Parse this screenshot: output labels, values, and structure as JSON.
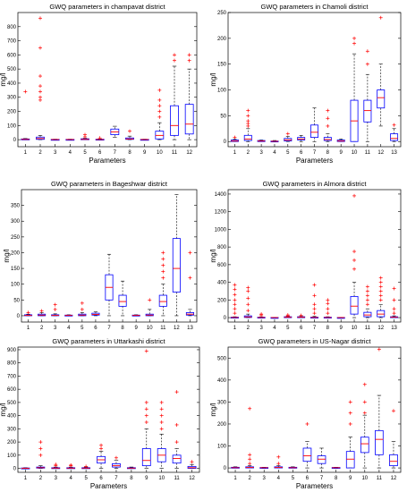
{
  "chart_data": [
    {
      "type": "box",
      "title": "GWQ parameters in champavat district",
      "xlabel": "Parameters",
      "ylabel": "mg/l",
      "categories": [
        "1",
        "2",
        "3",
        "4",
        "5",
        "6",
        "7",
        "8",
        "9",
        "10",
        "11",
        "12"
      ],
      "ylim": [
        -50,
        900
      ],
      "yticks": [
        0,
        100,
        200,
        300,
        400,
        500,
        600,
        700,
        800
      ],
      "boxes": [
        {
          "q1": 0,
          "med": 2,
          "q3": 5,
          "lw": 0,
          "uw": 8,
          "out": [
            340
          ]
        },
        {
          "q1": 2,
          "med": 8,
          "q3": 18,
          "lw": 0,
          "uw": 30,
          "out": [
            280,
            300,
            340,
            380,
            450,
            650,
            860
          ]
        },
        {
          "q1": 0,
          "med": 1,
          "q3": 2,
          "lw": 0,
          "uw": 3,
          "out": []
        },
        {
          "q1": 0,
          "med": 1,
          "q3": 2,
          "lw": 0,
          "uw": 3,
          "out": []
        },
        {
          "q1": 0,
          "med": 2,
          "q3": 6,
          "lw": 0,
          "uw": 10,
          "out": [
            20,
            35
          ]
        },
        {
          "q1": 0,
          "med": 1,
          "q3": 3,
          "lw": 0,
          "uw": 5,
          "out": [
            12
          ]
        },
        {
          "q1": 35,
          "med": 55,
          "q3": 75,
          "lw": 15,
          "uw": 95,
          "out": []
        },
        {
          "q1": 2,
          "med": 5,
          "q3": 12,
          "lw": 0,
          "uw": 25,
          "out": [
            60
          ]
        },
        {
          "q1": 0,
          "med": 1,
          "q3": 2,
          "lw": 0,
          "uw": 3,
          "out": []
        },
        {
          "q1": 5,
          "med": 30,
          "q3": 60,
          "lw": 0,
          "uw": 120,
          "out": [
            160,
            200,
            240,
            280,
            350
          ]
        },
        {
          "q1": 30,
          "med": 100,
          "q3": 240,
          "lw": 0,
          "uw": 520,
          "out": [
            560,
            600
          ]
        },
        {
          "q1": 40,
          "med": 110,
          "q3": 250,
          "lw": 0,
          "uw": 500,
          "out": [
            560,
            600
          ]
        }
      ]
    },
    {
      "type": "box",
      "title": "GWQ parameters in Chamoli district",
      "xlabel": "Parameters",
      "ylabel": "mg/l",
      "categories": [
        "1",
        "2",
        "3",
        "4",
        "5",
        "6",
        "7",
        "8",
        "9",
        "10",
        "11",
        "12",
        "13"
      ],
      "ylim": [
        -10,
        250
      ],
      "yticks": [
        0,
        50,
        100,
        150,
        200,
        250
      ],
      "boxes": [
        {
          "q1": 0,
          "med": 1,
          "q3": 3,
          "lw": 0,
          "uw": 5,
          "out": [
            8
          ]
        },
        {
          "q1": 2,
          "med": 5,
          "q3": 12,
          "lw": 0,
          "uw": 25,
          "out": [
            30,
            35,
            40,
            50,
            60
          ]
        },
        {
          "q1": 0,
          "med": 1,
          "q3": 2,
          "lw": 0,
          "uw": 3,
          "out": []
        },
        {
          "q1": 0,
          "med": 0.5,
          "q3": 1,
          "lw": 0,
          "uw": 2,
          "out": []
        },
        {
          "q1": 1,
          "med": 3,
          "q3": 6,
          "lw": 0,
          "uw": 10,
          "out": [
            15
          ]
        },
        {
          "q1": 3,
          "med": 5,
          "q3": 8,
          "lw": 0,
          "uw": 12,
          "out": []
        },
        {
          "q1": 8,
          "med": 18,
          "q3": 32,
          "lw": 0,
          "uw": 65,
          "out": []
        },
        {
          "q1": 2,
          "med": 4,
          "q3": 8,
          "lw": 0,
          "uw": 15,
          "out": [
            30,
            45,
            60
          ]
        },
        {
          "q1": 0,
          "med": 1,
          "q3": 3,
          "lw": 0,
          "uw": 5,
          "out": []
        },
        {
          "q1": 0,
          "med": 40,
          "q3": 80,
          "lw": 0,
          "uw": 170,
          "out": [
            190,
            200
          ]
        },
        {
          "q1": 38,
          "med": 60,
          "q3": 80,
          "lw": 0,
          "uw": 130,
          "out": [
            150,
            175
          ]
        },
        {
          "q1": 65,
          "med": 85,
          "q3": 100,
          "lw": 30,
          "uw": 150,
          "out": [
            240
          ]
        },
        {
          "q1": 2,
          "med": 6,
          "q3": 15,
          "lw": 0,
          "uw": 25,
          "out": [
            32
          ]
        }
      ]
    },
    {
      "type": "box",
      "title": "GWQ parameters in Bageshwar district",
      "xlabel": "",
      "ylabel": "mg/l",
      "categories": [
        "1",
        "2",
        "3",
        "4",
        "5",
        "6",
        "7",
        "8",
        "9",
        "10",
        "11",
        "12",
        "13"
      ],
      "ylim": [
        -20,
        400
      ],
      "yticks": [
        0,
        50,
        100,
        150,
        200,
        250,
        300,
        350
      ],
      "boxes": [
        {
          "q1": 0,
          "med": 1,
          "q3": 3,
          "lw": 0,
          "uw": 5,
          "out": [
            10
          ]
        },
        {
          "q1": 0,
          "med": 2,
          "q3": 5,
          "lw": 0,
          "uw": 10,
          "out": [
            15
          ]
        },
        {
          "q1": 0,
          "med": 1,
          "q3": 3,
          "lw": 0,
          "uw": 6,
          "out": [
            20,
            35
          ]
        },
        {
          "q1": 0,
          "med": 1,
          "q3": 2,
          "lw": 0,
          "uw": 3,
          "out": []
        },
        {
          "q1": 0,
          "med": 2,
          "q3": 5,
          "lw": 0,
          "uw": 10,
          "out": [
            20,
            40
          ]
        },
        {
          "q1": 2,
          "med": 4,
          "q3": 8,
          "lw": 0,
          "uw": 12,
          "out": []
        },
        {
          "q1": 50,
          "med": 90,
          "q3": 130,
          "lw": 0,
          "uw": 195,
          "out": []
        },
        {
          "q1": 30,
          "med": 45,
          "q3": 65,
          "lw": 0,
          "uw": 110,
          "out": []
        },
        {
          "q1": 0,
          "med": 1,
          "q3": 2,
          "lw": 0,
          "uw": 3,
          "out": []
        },
        {
          "q1": 0,
          "med": 2,
          "q3": 5,
          "lw": 0,
          "uw": 20,
          "out": [
            50
          ]
        },
        {
          "q1": 30,
          "med": 45,
          "q3": 65,
          "lw": 0,
          "uw": 100,
          "out": [
            120,
            140,
            160,
            180,
            200
          ]
        },
        {
          "q1": 75,
          "med": 150,
          "q3": 245,
          "lw": 0,
          "uw": 385,
          "out": []
        },
        {
          "q1": 2,
          "med": 5,
          "q3": 10,
          "lw": 0,
          "uw": 20,
          "out": [
            120,
            200
          ]
        }
      ]
    },
    {
      "type": "box",
      "title": "GWQ parameters in Almora district",
      "xlabel": "",
      "ylabel": "mg/l",
      "categories": [
        "1",
        "2",
        "3",
        "4",
        "5",
        "6",
        "7",
        "8",
        "9",
        "10",
        "11",
        "12",
        "13"
      ],
      "ylim": [
        -50,
        1450
      ],
      "yticks": [
        0,
        200,
        400,
        600,
        800,
        1000,
        1200,
        1400
      ],
      "boxes": [
        {
          "q1": 0,
          "med": 2,
          "q3": 5,
          "lw": 0,
          "uw": 10,
          "out": [
            50,
            100,
            150,
            200,
            260,
            320,
            370
          ]
        },
        {
          "q1": 2,
          "med": 8,
          "q3": 20,
          "lw": 0,
          "uw": 40,
          "out": [
            80,
            150,
            220,
            300,
            340
          ]
        },
        {
          "q1": 0,
          "med": 2,
          "q3": 5,
          "lw": 0,
          "uw": 10,
          "out": [
            30,
            40
          ]
        },
        {
          "q1": 0,
          "med": 1,
          "q3": 2,
          "lw": 0,
          "uw": 3,
          "out": []
        },
        {
          "q1": 2,
          "med": 5,
          "q3": 10,
          "lw": 0,
          "uw": 15,
          "out": [
            20,
            30
          ]
        },
        {
          "q1": 2,
          "med": 5,
          "q3": 10,
          "lw": 0,
          "uw": 15,
          "out": [
            25
          ]
        },
        {
          "q1": 0,
          "med": 2,
          "q3": 5,
          "lw": 0,
          "uw": 15,
          "out": [
            50,
            100,
            150,
            250,
            370
          ]
        },
        {
          "q1": 0,
          "med": 2,
          "q3": 5,
          "lw": 0,
          "uw": 10,
          "out": [
            50,
            100,
            160,
            200
          ]
        },
        {
          "q1": 0,
          "med": 1,
          "q3": 2,
          "lw": 0,
          "uw": 3,
          "out": []
        },
        {
          "q1": 40,
          "med": 130,
          "q3": 240,
          "lw": 0,
          "uw": 400,
          "out": [
            550,
            650,
            750,
            1380
          ]
        },
        {
          "q1": 10,
          "med": 30,
          "q3": 60,
          "lw": 0,
          "uw": 100,
          "out": [
            150,
            200,
            250,
            300,
            350
          ]
        },
        {
          "q1": 10,
          "med": 40,
          "q3": 80,
          "lw": 0,
          "uw": 150,
          "out": [
            200,
            250,
            300,
            350,
            400,
            450
          ]
        },
        {
          "q1": 2,
          "med": 5,
          "q3": 10,
          "lw": 0,
          "uw": 20,
          "out": [
            50,
            100,
            200,
            330
          ]
        }
      ]
    },
    {
      "type": "box",
      "title": "GWQ parameters in Uttarkashi district",
      "xlabel": "Parameters",
      "ylabel": "mg/l",
      "categories": [
        "1",
        "2",
        "3",
        "4",
        "5",
        "6",
        "7",
        "8",
        "9",
        "10",
        "11",
        "12"
      ],
      "ylim": [
        -30,
        920
      ],
      "yticks": [
        0,
        100,
        200,
        300,
        400,
        500,
        600,
        700,
        800,
        900
      ],
      "boxes": [
        {
          "q1": 0,
          "med": 1,
          "q3": 3,
          "lw": 0,
          "uw": 5,
          "out": []
        },
        {
          "q1": 2,
          "med": 5,
          "q3": 10,
          "lw": 0,
          "uw": 20,
          "out": [
            100,
            150,
            200
          ]
        },
        {
          "q1": 0,
          "med": 2,
          "q3": 5,
          "lw": 0,
          "uw": 10,
          "out": [
            20,
            30
          ]
        },
        {
          "q1": 0,
          "med": 2,
          "q3": 5,
          "lw": 0,
          "uw": 10,
          "out": [
            20,
            25
          ]
        },
        {
          "q1": 0,
          "med": 2,
          "q3": 5,
          "lw": 0,
          "uw": 10,
          "out": [
            15
          ]
        },
        {
          "q1": 40,
          "med": 65,
          "q3": 90,
          "lw": 0,
          "uw": 130,
          "out": [
            150,
            175
          ]
        },
        {
          "q1": 10,
          "med": 20,
          "q3": 35,
          "lw": 0,
          "uw": 60,
          "out": [
            80
          ]
        },
        {
          "q1": 0,
          "med": 2,
          "q3": 5,
          "lw": 0,
          "uw": 10,
          "out": []
        },
        {
          "q1": 20,
          "med": 60,
          "q3": 150,
          "lw": 0,
          "uw": 300,
          "out": [
            350,
            400,
            450,
            500,
            890
          ]
        },
        {
          "q1": 50,
          "med": 100,
          "q3": 150,
          "lw": 0,
          "uw": 260,
          "out": [
            300,
            350,
            400,
            450,
            500
          ]
        },
        {
          "q1": 40,
          "med": 75,
          "q3": 100,
          "lw": 0,
          "uw": 150,
          "out": [
            200,
            330,
            580
          ]
        },
        {
          "q1": 0,
          "med": 5,
          "q3": 15,
          "lw": 0,
          "uw": 30,
          "out": [
            50
          ]
        }
      ]
    },
    {
      "type": "box",
      "title": "GWQ parameters in US-Nagar district",
      "xlabel": "Parameters",
      "ylabel": "mg/l",
      "categories": [
        "1",
        "2",
        "3",
        "4",
        "5",
        "6",
        "7",
        "8",
        "9",
        "10",
        "11",
        "12"
      ],
      "ylim": [
        -20,
        550
      ],
      "yticks": [
        0,
        100,
        200,
        300,
        400,
        500
      ],
      "boxes": [
        {
          "q1": 0,
          "med": 1,
          "q3": 3,
          "lw": 0,
          "uw": 5,
          "out": []
        },
        {
          "q1": 0,
          "med": 2,
          "q3": 5,
          "lw": 0,
          "uw": 10,
          "out": [
            20,
            40,
            60,
            270
          ]
        },
        {
          "q1": 0,
          "med": 1,
          "q3": 2,
          "lw": 0,
          "uw": 3,
          "out": []
        },
        {
          "q1": 0,
          "med": 2,
          "q3": 5,
          "lw": 0,
          "uw": 10,
          "out": [
            20,
            50
          ]
        },
        {
          "q1": 0,
          "med": 1,
          "q3": 3,
          "lw": 0,
          "uw": 5,
          "out": []
        },
        {
          "q1": 30,
          "med": 55,
          "q3": 90,
          "lw": 0,
          "uw": 120,
          "out": [
            200
          ]
        },
        {
          "q1": 20,
          "med": 40,
          "q3": 55,
          "lw": 0,
          "uw": 90,
          "out": []
        },
        {
          "q1": 0,
          "med": 1,
          "q3": 2,
          "lw": 0,
          "uw": 3,
          "out": []
        },
        {
          "q1": 0,
          "med": 40,
          "q3": 75,
          "lw": 0,
          "uw": 140,
          "out": [
            200,
            250,
            300
          ]
        },
        {
          "q1": 70,
          "med": 110,
          "q3": 140,
          "lw": 0,
          "uw": 240,
          "out": [
            250,
            300,
            380
          ]
        },
        {
          "q1": 60,
          "med": 130,
          "q3": 170,
          "lw": 0,
          "uw": 330,
          "out": [
            540
          ]
        },
        {
          "q1": 10,
          "med": 30,
          "q3": 60,
          "lw": 0,
          "uw": 120,
          "out": [
            260
          ]
        }
      ]
    }
  ],
  "colors": {
    "box": "#0000ff",
    "median": "#ff0000",
    "whisker": "#000000",
    "outlier": "#ff0000"
  }
}
